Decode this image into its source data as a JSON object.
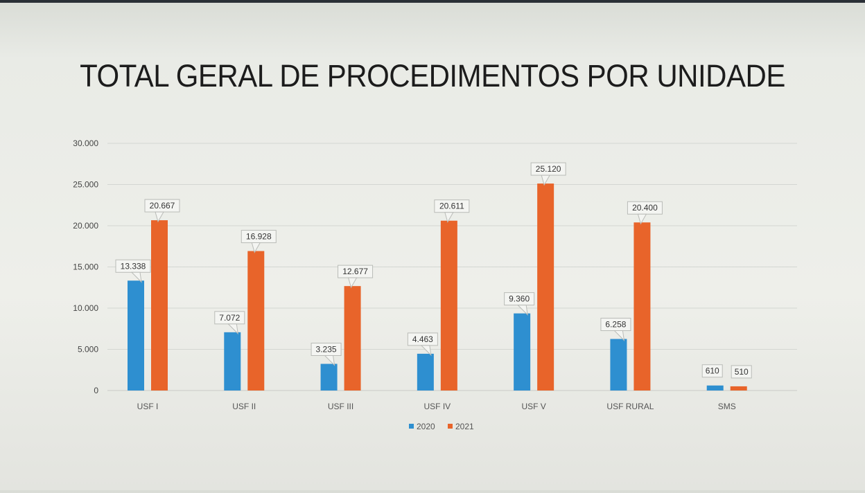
{
  "chart_data": {
    "type": "bar",
    "title": "TOTAL GERAL DE PROCEDIMENTOS POR UNIDADE",
    "categories": [
      "USF I",
      "USF II",
      "USF III",
      "USF IV",
      "USF V",
      "USF RURAL",
      "SMS"
    ],
    "series": [
      {
        "name": "2020",
        "color": "#2e8fd0",
        "values": [
          13338,
          7072,
          3235,
          4463,
          9360,
          6258,
          610
        ],
        "labels": [
          "13.338",
          "7.072",
          "3.235",
          "4.463",
          "9.360",
          "6.258",
          "610"
        ]
      },
      {
        "name": "2021",
        "color": "#e8642a",
        "values": [
          20667,
          16928,
          12677,
          20611,
          25120,
          20400,
          510
        ],
        "labels": [
          "20.667",
          "16.928",
          "12.677",
          "20.611",
          "25.120",
          "20.400",
          "510"
        ]
      }
    ],
    "ylim": [
      0,
      30000
    ],
    "yticks": [
      0,
      5000,
      10000,
      15000,
      20000,
      25000,
      30000
    ],
    "ytick_labels": [
      "0",
      "5.000",
      "10.000",
      "15.000",
      "20.000",
      "25.000",
      "30.000"
    ],
    "grid": true,
    "legend_position": "bottom"
  }
}
